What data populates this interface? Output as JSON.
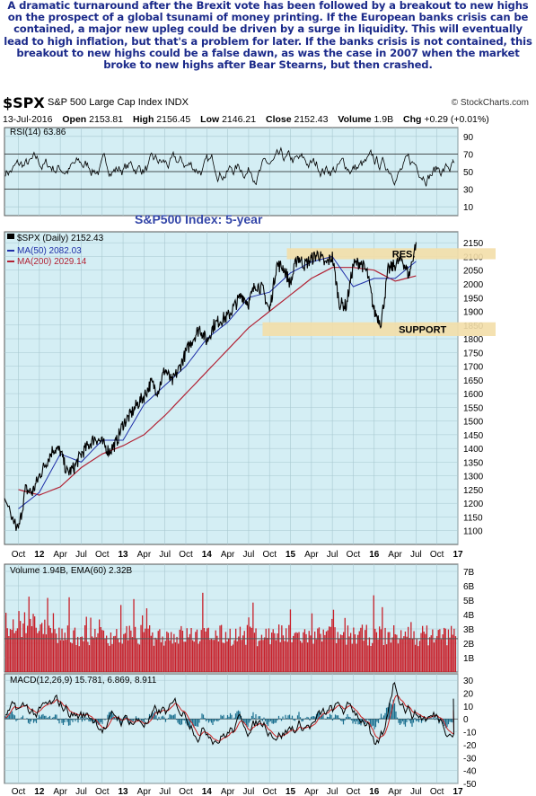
{
  "commentary": "A dramatic turnaround after the Brexit vote has been followed by a breakout to new highs on the prospect of a global tsunami of money printing. If the European banks crisis can be contained, a major new upleg could be driven by a surge in liquidity. This will eventually lead to high inflation, but that's a problem for later. If the banks crisis is not contained, this breakout to new highs could be a false dawn, as was the case in 2007 when the market broke to new highs after Bear Stearns, but then crashed.",
  "header": {
    "symbol": "$SPX",
    "name": "S&P 500 Large Cap Index  INDX",
    "brand": "© StockCharts.com",
    "date": "13-Jul-2016",
    "open_label": "Open",
    "open": "2153.81",
    "high_label": "High",
    "high": "2156.45",
    "low_label": "Low",
    "low": "2146.21",
    "close_label": "Close",
    "close": "2152.43",
    "volume_label": "Volume",
    "volume": "1.9B",
    "chg_label": "Chg",
    "chg": "+0.29 (+0.01%)"
  },
  "colors": {
    "panel_bg": "#d4eef4",
    "grid": "#a8c8d0",
    "price": "#000000",
    "ma50": "#1f2fa8",
    "ma200": "#b22234",
    "zone": "#f3dea8",
    "volume": "#c8202a",
    "volume_ema": "#555555",
    "macd": "#000000",
    "signal": "#cc2222",
    "histogram": "#1a6f8f",
    "title_blue": "#3346a8",
    "commentary": "#1b2a8a"
  },
  "chart_data": [
    {
      "panel": "rsi",
      "type": "line",
      "label": "RSI(14) 63.86",
      "ylim": [
        0,
        100
      ],
      "y_ticks": [
        "90",
        "70",
        "50",
        "30",
        "10"
      ],
      "reference_lines": [
        70,
        50,
        30
      ],
      "note": "RSI oscillating mostly between 30 and 70 over the 5 years"
    },
    {
      "panel": "price",
      "type": "line",
      "title": "S&P500 Index: 5-year",
      "legend": [
        "$SPX (Daily) 2152.43",
        "MA(50) 2082.03",
        "MA(200) 2029.14"
      ],
      "ylim": [
        1050,
        2190
      ],
      "y_ticks": [
        "2150",
        "2100",
        "2050",
        "2000",
        "1950",
        "1900",
        "1850",
        "1800",
        "1750",
        "1700",
        "1650",
        "1600",
        "1550",
        "1500",
        "1450",
        "1400",
        "1350",
        "1300",
        "1250",
        "1200",
        "1150",
        "1100"
      ],
      "x_ticks": [
        "Oct",
        "12",
        "Apr",
        "Jul",
        "Oct",
        "13",
        "Apr",
        "Jul",
        "Oct",
        "14",
        "Apr",
        "Jul",
        "Oct",
        "15",
        "Apr",
        "Jul",
        "Oct",
        "16",
        "Apr",
        "Jul",
        "Oct",
        "17"
      ],
      "series": [
        {
          "name": "$SPX (Daily)",
          "x": [
            "Aug-11",
            "Oct-11",
            "Nov-11",
            "Dec-11",
            "Jan-12",
            "Feb-12",
            "Mar-12",
            "Apr-12",
            "May-12",
            "Jun-12",
            "Jul-12",
            "Aug-12",
            "Sep-12",
            "Oct-12",
            "Nov-12",
            "Dec-12",
            "Jan-13",
            "Feb-13",
            "Mar-13",
            "Apr-13",
            "May-13",
            "Jun-13",
            "Jul-13",
            "Aug-13",
            "Sep-13",
            "Oct-13",
            "Nov-13",
            "Dec-13",
            "Jan-14",
            "Feb-14",
            "Mar-14",
            "Apr-14",
            "May-14",
            "Jun-14",
            "Jul-14",
            "Aug-14",
            "Sep-14",
            "Oct-14",
            "Nov-14",
            "Dec-14",
            "Jan-15",
            "Feb-15",
            "Mar-15",
            "Apr-15",
            "May-15",
            "Jun-15",
            "Jul-15",
            "Aug-15",
            "Sep-15",
            "Oct-15",
            "Nov-15",
            "Dec-15",
            "Jan-16",
            "Feb-16",
            "Mar-16",
            "Apr-16",
            "May-16",
            "Jun-16",
            "Jul-16"
          ],
          "values": [
            1200,
            1100,
            1250,
            1240,
            1300,
            1350,
            1400,
            1390,
            1310,
            1330,
            1380,
            1410,
            1440,
            1420,
            1390,
            1420,
            1490,
            1520,
            1560,
            1590,
            1640,
            1610,
            1690,
            1640,
            1690,
            1750,
            1800,
            1840,
            1790,
            1850,
            1870,
            1880,
            1920,
            1960,
            1930,
            2000,
            1980,
            1900,
            2070,
            2060,
            2000,
            2100,
            2070,
            2090,
            2110,
            2070,
            2100,
            1930,
            1920,
            2070,
            2080,
            2040,
            1900,
            1860,
            2050,
            2070,
            2090,
            2030,
            2152
          ]
        },
        {
          "name": "MA(50)",
          "x": [
            "Oct-11",
            "Jan-12",
            "Apr-12",
            "Jul-12",
            "Oct-12",
            "Jan-13",
            "Apr-13",
            "Jul-13",
            "Oct-13",
            "Jan-14",
            "Apr-14",
            "Jul-14",
            "Oct-14",
            "Jan-15",
            "Apr-15",
            "Jul-15",
            "Oct-15",
            "Jan-16",
            "Apr-16",
            "Jul-16"
          ],
          "values": [
            1180,
            1240,
            1380,
            1350,
            1430,
            1430,
            1560,
            1630,
            1700,
            1800,
            1860,
            1950,
            1970,
            2040,
            2080,
            2100,
            1990,
            2020,
            2020,
            2082
          ]
        },
        {
          "name": "MA(200)",
          "x": [
            "Oct-11",
            "Jan-12",
            "Apr-12",
            "Jul-12",
            "Oct-12",
            "Jan-13",
            "Apr-13",
            "Jul-13",
            "Oct-13",
            "Jan-14",
            "Apr-14",
            "Jul-14",
            "Oct-14",
            "Jan-15",
            "Apr-15",
            "Jul-15",
            "Oct-15",
            "Jan-16",
            "Apr-16",
            "Jul-16"
          ],
          "values": [
            1250,
            1230,
            1260,
            1330,
            1380,
            1410,
            1450,
            1520,
            1600,
            1680,
            1760,
            1840,
            1900,
            1960,
            2020,
            2060,
            2060,
            2050,
            2010,
            2029
          ]
        }
      ],
      "annotations": [
        {
          "label": "RES.",
          "range": [
            2090,
            2130
          ]
        },
        {
          "label": "SUPPORT",
          "range": [
            1810,
            1860
          ]
        }
      ]
    },
    {
      "panel": "volume",
      "type": "bar",
      "label": "Volume 1.94B, EMA(60) 2.32B",
      "ylim": [
        0,
        7.5
      ],
      "y_ticks": [
        "7B",
        "6B",
        "5B",
        "4B",
        "3B",
        "2B",
        "1B"
      ],
      "typical_range_billions": [
        1.5,
        5.0
      ],
      "ema60_billions": 2.32
    },
    {
      "panel": "macd",
      "type": "line",
      "label": "MACD(12,26,9) 15.781, 6.869, 8.911",
      "values_latest": {
        "macd": 15.781,
        "signal": 6.869,
        "histogram": 8.911
      },
      "ylim": [
        -50,
        35
      ],
      "y_ticks": [
        "30",
        "20",
        "10",
        "0",
        "-10",
        "-20",
        "-30",
        "-40",
        "-50"
      ]
    }
  ]
}
